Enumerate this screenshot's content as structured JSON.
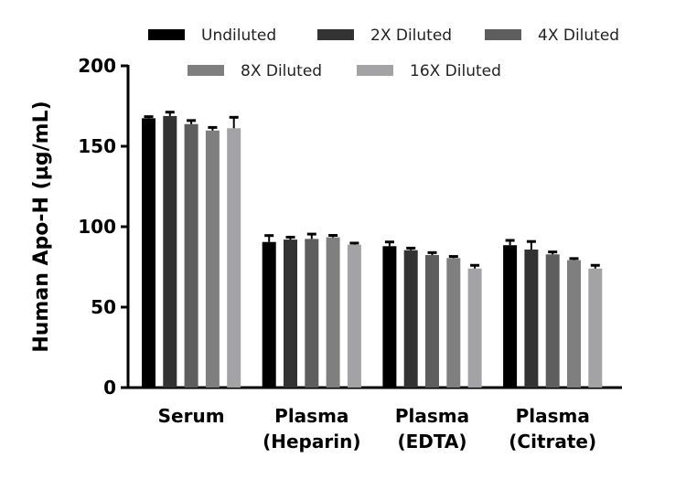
{
  "chart_data": {
    "type": "bar",
    "title": "",
    "xlabel": "",
    "ylabel": "Human Apo-H (µg/mL)",
    "ylim": [
      0,
      200
    ],
    "yticks": [
      0,
      50,
      100,
      150,
      200
    ],
    "categories": [
      [
        "Serum"
      ],
      [
        "Plasma",
        "(Heparin)"
      ],
      [
        "Plasma",
        "(EDTA)"
      ],
      [
        "Plasma",
        "(Citrate)"
      ]
    ],
    "legend_position": "top",
    "grid": false,
    "series": [
      {
        "name": "Undiluted",
        "color": "#000000",
        "values": [
          167.4,
          90.5,
          87.9,
          88.5
        ],
        "errors": [
          1.0,
          4.0,
          2.6,
          3.0
        ]
      },
      {
        "name": "2X Diluted",
        "color": "#333333",
        "values": [
          168.8,
          92.0,
          85.4,
          85.8
        ],
        "errors": [
          2.4,
          1.5,
          1.3,
          5.0
        ]
      },
      {
        "name": "4X Diluted",
        "color": "#5e5e5e",
        "values": [
          163.8,
          92.4,
          82.4,
          82.8
        ],
        "errors": [
          2.2,
          3.0,
          1.5,
          1.5
        ]
      },
      {
        "name": "8X Diluted",
        "color": "#7f7f7f",
        "values": [
          159.8,
          93.4,
          80.5,
          79.2
        ],
        "errors": [
          1.9,
          1.2,
          1.0,
          1.0
        ]
      },
      {
        "name": "16X Diluted",
        "color": "#a3a3a5",
        "values": [
          161.2,
          88.8,
          74.0,
          74.0
        ],
        "errors": [
          6.8,
          1.0,
          2.0,
          2.0
        ]
      }
    ]
  }
}
